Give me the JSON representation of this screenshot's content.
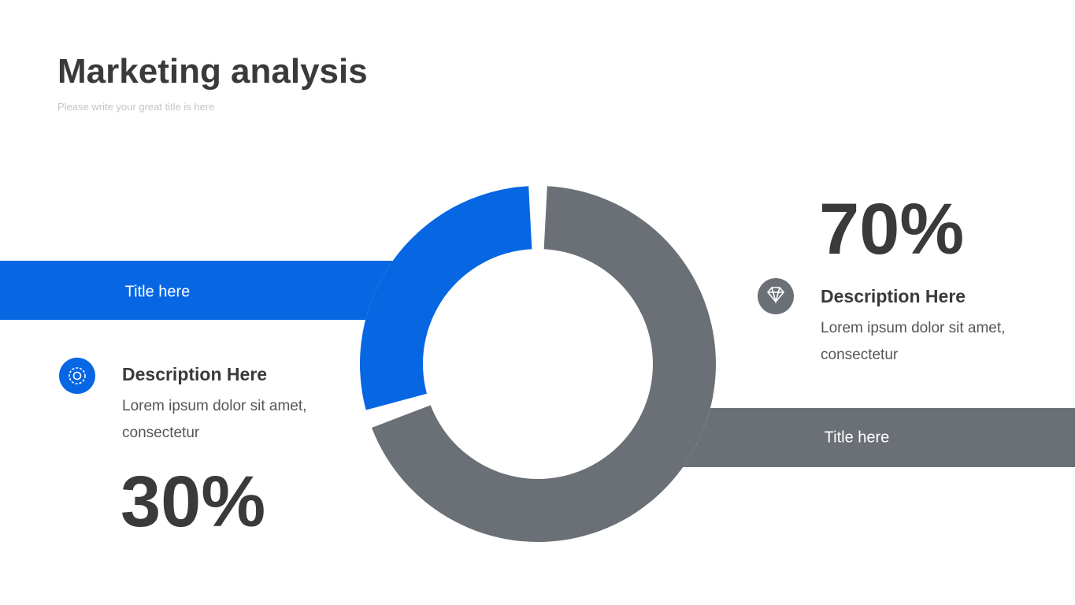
{
  "header": {
    "title": "Marketing analysis",
    "subtitle": "Please write your great title is here"
  },
  "chart_data": {
    "type": "donut",
    "categories": [
      "Title here",
      "Title here"
    ],
    "values": [
      30,
      70
    ],
    "value_labels": [
      "30%",
      "70%"
    ],
    "colors": [
      "#0767e2",
      "#6b7077"
    ]
  },
  "descriptions": [
    {
      "title": "Description Here",
      "text": "Lorem ipsum dolor sit amet, consectetur"
    },
    {
      "title": "Description Here",
      "text": "Lorem ipsum dolor sit amet, consectetur"
    }
  ]
}
